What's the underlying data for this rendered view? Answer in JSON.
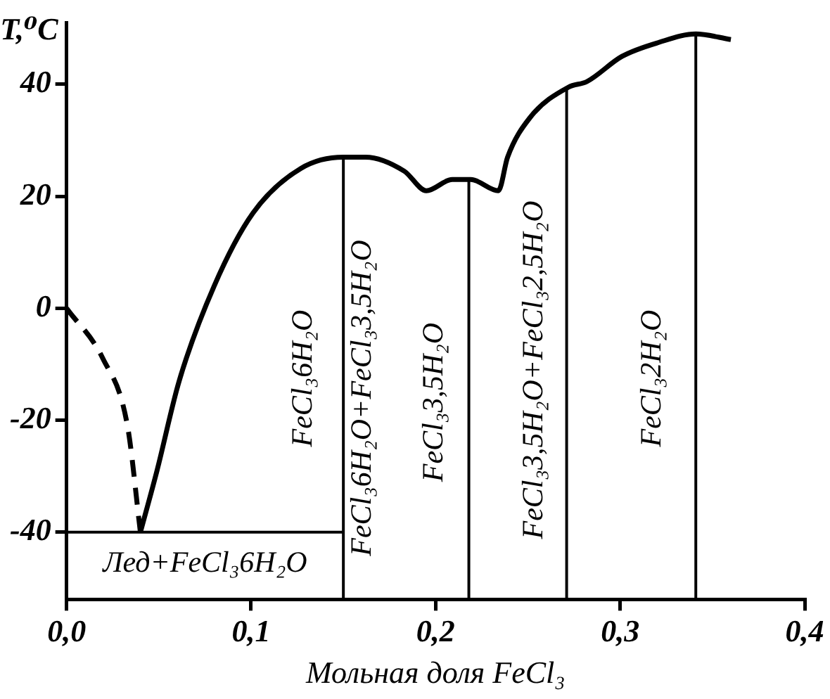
{
  "chart_data": {
    "type": "line",
    "xlabel": "Мольная доля FeCl₃",
    "ylabel": "T,⁰C",
    "xlim": [
      0,
      0.4
    ],
    "ylim": [
      -52,
      51
    ],
    "xticks": [
      {
        "value": 0,
        "label": "0,0"
      },
      {
        "value": 0.1,
        "label": "0,1"
      },
      {
        "value": 0.2,
        "label": "0,2"
      },
      {
        "value": 0.3,
        "label": "0,3"
      },
      {
        "value": 0.4,
        "label": "0,4"
      }
    ],
    "yticks": [
      -40,
      -20,
      0,
      20,
      40
    ],
    "marker": "none",
    "legend": false,
    "series": [
      {
        "color": "#000000",
        "line_style": "dashed",
        "x": [
          0,
          0.0197,
          0.033,
          0.04
        ],
        "values": [
          0,
          -9,
          -21,
          -40
        ]
      },
      {
        "color": "#000000",
        "line_style": "solid",
        "x": [
          0.04,
          0.049,
          0.061,
          0.08,
          0.101,
          0.127,
          0.15,
          0.162,
          0.183,
          0.195,
          0.209,
          0.219,
          0.234,
          0.239,
          0.251,
          0.272,
          0.282,
          0.301,
          0.321,
          0.341,
          0.36
        ],
        "values": [
          -40,
          -29,
          -13,
          4,
          17,
          25,
          27,
          27,
          24.5,
          21,
          23,
          23,
          21,
          27,
          34,
          39.5,
          40.5,
          45,
          47.5,
          49,
          48
        ]
      },
      {
        "color": "#000000",
        "line_style": "solid",
        "x": [
          0,
          0.15
        ],
        "values": [
          -40,
          -40
        ]
      },
      {
        "color": "#000000",
        "line_style": "solid",
        "x": [
          0.15,
          0.15
        ],
        "values": [
          -52,
          27
        ]
      },
      {
        "color": "#000000",
        "line_style": "solid",
        "x": [
          0.218,
          0.218
        ],
        "values": [
          -52,
          23
        ]
      },
      {
        "color": "#000000",
        "line_style": "solid",
        "x": [
          0.271,
          0.271
        ],
        "values": [
          -52,
          39.5
        ]
      },
      {
        "color": "#000000",
        "line_style": "solid",
        "x": [
          0.341,
          0.341
        ],
        "values": [
          -52,
          49
        ]
      }
    ],
    "annotations": [
      "FeCl₃6H₂O",
      "FeCl₃6H₂O+FeCl₃3,5H₂O",
      "FeCl₃3,5H₂O",
      "FeCl₃3,5H₂O+FeCl₃2,5H₂O",
      "FeCl₃2H₂O",
      "Лед+FeCl₃6H₂O"
    ]
  }
}
